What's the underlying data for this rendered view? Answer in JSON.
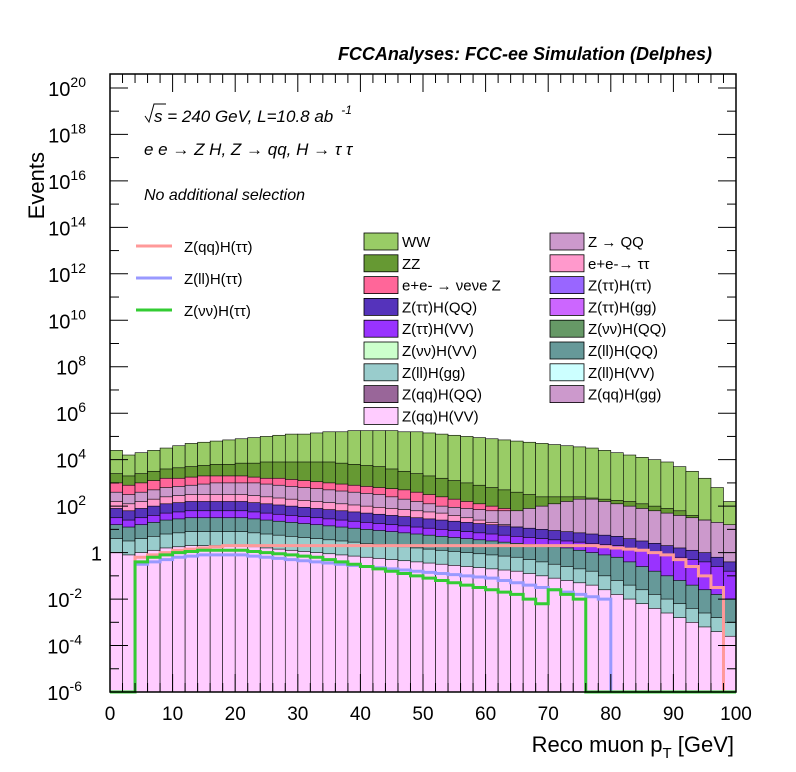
{
  "chart_data": {
    "type": "area",
    "title": "FCCAnalyses: FCC-ee Simulation (Delphes)",
    "xlabel": "Reco muon p",
    "xlabel_sub": "T",
    "xlabel_unit": " [GeV]",
    "ylabel": "Events",
    "xlim": [
      0,
      100
    ],
    "ylim_log10": [
      -6,
      20.6
    ],
    "log_y": true,
    "x_ticks": [
      "0",
      "10",
      "20",
      "30",
      "40",
      "50",
      "60",
      "70",
      "80",
      "90",
      "100"
    ],
    "y_tick_exponents": [
      "20",
      "18",
      "16",
      "14",
      "12",
      "10",
      "8",
      "6",
      "4",
      "2",
      "",
      "-2",
      "-4",
      "-6"
    ],
    "y_tick_one": "1",
    "annotations": {
      "energy": "s = 240 GeV, L=10.8 ab",
      "lumi_exp": "-1",
      "process": "e e → Z H, Z → qq, H → τ τ",
      "selection": "No additional selection"
    },
    "bin_edges": [
      0,
      2,
      4,
      6,
      8,
      10,
      12,
      14,
      16,
      18,
      20,
      22,
      24,
      26,
      28,
      30,
      32,
      34,
      36,
      38,
      40,
      42,
      44,
      46,
      48,
      50,
      52,
      54,
      56,
      58,
      60,
      62,
      64,
      66,
      68,
      70,
      72,
      74,
      76,
      78,
      80,
      82,
      84,
      86,
      88,
      90,
      92,
      94,
      96,
      98,
      100
    ],
    "stack": [
      {
        "name": "WW",
        "color": "#99cc66",
        "log10_top": [
          4.4,
          4.2,
          4.3,
          4.4,
          4.5,
          4.6,
          4.7,
          4.75,
          4.8,
          4.85,
          4.9,
          4.95,
          5.0,
          5.05,
          5.1,
          5.1,
          5.15,
          5.2,
          5.2,
          5.25,
          5.25,
          5.25,
          5.25,
          5.2,
          5.2,
          5.15,
          5.1,
          5.05,
          5.0,
          4.95,
          4.9,
          4.85,
          4.8,
          4.75,
          4.7,
          4.65,
          4.6,
          4.55,
          4.5,
          4.4,
          4.3,
          4.2,
          4.1,
          4.0,
          3.9,
          3.7,
          3.5,
          3.2,
          2.8,
          2.2
        ]
      },
      {
        "name": "ZZ",
        "color": "#669933",
        "log10_top": [
          3.4,
          3.3,
          3.4,
          3.5,
          3.6,
          3.65,
          3.7,
          3.75,
          3.8,
          3.8,
          3.85,
          3.85,
          3.9,
          3.9,
          3.9,
          3.9,
          3.9,
          3.9,
          3.85,
          3.8,
          3.75,
          3.7,
          3.6,
          3.5,
          3.4,
          3.3,
          3.2,
          3.1,
          3.0,
          2.9,
          2.8,
          2.7,
          2.6,
          2.5,
          2.4,
          2.4,
          2.4,
          2.4,
          2.35,
          2.3,
          2.25,
          2.2,
          2.1,
          2.0,
          1.9,
          1.8,
          1.6,
          1.4,
          1.1,
          0.8
        ]
      },
      {
        "name": "e+e- → νeνe Z",
        "color": "#ff6699",
        "log10_top": [
          3.0,
          2.9,
          3.0,
          3.1,
          3.2,
          3.2,
          3.25,
          3.3,
          3.3,
          3.3,
          3.3,
          3.25,
          3.2,
          3.2,
          3.15,
          3.1,
          3.05,
          3.0,
          2.95,
          2.9,
          2.85,
          2.8,
          2.75,
          2.7,
          2.6,
          2.5,
          2.4,
          2.3,
          2.2,
          2.1,
          2.0,
          1.9,
          1.8,
          1.7,
          1.6,
          1.5,
          1.4,
          1.3,
          1.2,
          1.1,
          1.0,
          0.9,
          0.8,
          0.7,
          0.6,
          0.5,
          0.4,
          0.3,
          0.2,
          0.1
        ]
      },
      {
        "name": "Z → QQ",
        "color": "#cc99cc",
        "log10_top": [
          2.6,
          2.5,
          2.6,
          2.7,
          2.8,
          2.85,
          2.9,
          2.95,
          3.0,
          3.0,
          3.0,
          3.0,
          2.95,
          2.9,
          2.85,
          2.8,
          2.75,
          2.7,
          2.65,
          2.6,
          2.55,
          2.5,
          2.4,
          2.3,
          2.2,
          2.1,
          2.0,
          1.95,
          1.9,
          1.85,
          1.8,
          1.8,
          1.8,
          1.9,
          2.0,
          2.1,
          2.2,
          2.3,
          2.3,
          2.2,
          2.1,
          2.0,
          1.9,
          1.8,
          1.7,
          1.6,
          1.5,
          1.4,
          1.3,
          1.2
        ]
      },
      {
        "name": "e+e-→ ττ",
        "color": "#ff99cc",
        "log10_top": [
          2.2,
          2.1,
          2.2,
          2.3,
          2.4,
          2.45,
          2.5,
          2.5,
          2.5,
          2.5,
          2.5,
          2.45,
          2.4,
          2.35,
          2.3,
          2.25,
          2.2,
          2.15,
          2.1,
          2.05,
          2.0,
          1.95,
          1.9,
          1.85,
          1.8,
          1.75,
          1.7,
          1.6,
          1.5,
          1.4,
          1.3,
          1.2,
          1.1,
          1.0,
          0.9,
          0.8,
          0.7,
          0.6,
          0.5,
          0.4,
          0.3,
          0.2,
          0.1,
          0.0,
          -0.2,
          -0.4,
          -0.6,
          -0.8,
          -1.0,
          -1.2
        ]
      },
      {
        "name": "Z(ττ)H(QQ)",
        "color": "#5533bb",
        "log10_top": [
          1.9,
          1.8,
          1.9,
          2.0,
          2.1,
          2.15,
          2.2,
          2.2,
          2.2,
          2.2,
          2.2,
          2.15,
          2.1,
          2.05,
          2.0,
          1.95,
          1.9,
          1.85,
          1.8,
          1.75,
          1.7,
          1.65,
          1.6,
          1.55,
          1.5,
          1.45,
          1.4,
          1.35,
          1.3,
          1.25,
          1.2,
          1.15,
          1.1,
          1.05,
          1.0,
          0.95,
          0.9,
          0.85,
          0.8,
          0.75,
          0.7,
          0.6,
          0.5,
          0.4,
          0.3,
          0.2,
          0.1,
          0.0,
          -0.2,
          -0.4
        ]
      },
      {
        "name": "Z(ττ)H(VV)",
        "color": "#9933ff",
        "log10_top": [
          1.5,
          1.4,
          1.5,
          1.6,
          1.7,
          1.75,
          1.8,
          1.8,
          1.8,
          1.8,
          1.8,
          1.75,
          1.7,
          1.65,
          1.6,
          1.55,
          1.5,
          1.45,
          1.4,
          1.35,
          1.3,
          1.25,
          1.2,
          1.15,
          1.1,
          1.05,
          1.0,
          0.95,
          0.9,
          0.85,
          0.8,
          0.75,
          0.7,
          0.65,
          0.6,
          0.55,
          0.5,
          0.45,
          0.4,
          0.35,
          0.3,
          0.2,
          0.1,
          0.0,
          -0.1,
          -0.2,
          -0.3,
          -0.4,
          -0.6,
          -0.8
        ]
      },
      {
        "name": "Z(ll)H(QQ)",
        "color": "#669999",
        "log10_top": [
          1.2,
          1.1,
          1.2,
          1.3,
          1.4,
          1.45,
          1.5,
          1.5,
          1.5,
          1.5,
          1.5,
          1.45,
          1.4,
          1.35,
          1.3,
          1.25,
          1.2,
          1.15,
          1.1,
          1.05,
          1.0,
          0.95,
          0.9,
          0.85,
          0.8,
          0.75,
          0.7,
          0.65,
          0.6,
          0.55,
          0.5,
          0.45,
          0.4,
          0.35,
          0.3,
          0.25,
          0.2,
          0.1,
          0.0,
          -0.1,
          -0.2,
          -0.4,
          -0.6,
          -0.8,
          -1.0,
          -1.2,
          -1.4,
          -1.6,
          -1.8,
          -2.0
        ]
      },
      {
        "name": "Z(ll)H(gg)",
        "color": "#99cccc",
        "log10_top": [
          0.6,
          0.5,
          0.6,
          0.7,
          0.8,
          0.85,
          0.9,
          0.9,
          0.9,
          0.9,
          0.9,
          0.85,
          0.8,
          0.75,
          0.7,
          0.65,
          0.6,
          0.55,
          0.5,
          0.45,
          0.4,
          0.35,
          0.3,
          0.25,
          0.2,
          0.15,
          0.1,
          0.05,
          0.0,
          -0.05,
          -0.1,
          -0.15,
          -0.2,
          -0.3,
          -0.4,
          -0.5,
          -0.6,
          -0.7,
          -0.8,
          -1.0,
          -1.2,
          -1.4,
          -1.6,
          -1.8,
          -2.0,
          -2.2,
          -2.4,
          -2.6,
          -2.8,
          -3.0
        ]
      },
      {
        "name": "Z(qq)H(VV)",
        "color": "#ffccff",
        "log10_top": [
          0.0,
          -0.1,
          0.0,
          0.1,
          0.2,
          0.25,
          0.3,
          0.3,
          0.3,
          0.3,
          0.3,
          0.25,
          0.2,
          0.15,
          0.1,
          0.05,
          0.0,
          -0.05,
          -0.1,
          -0.15,
          -0.2,
          -0.25,
          -0.3,
          -0.35,
          -0.4,
          -0.45,
          -0.5,
          -0.55,
          -0.6,
          -0.65,
          -0.7,
          -0.75,
          -0.8,
          -0.9,
          -1.0,
          -1.1,
          -1.2,
          -1.3,
          -1.4,
          -1.6,
          -1.8,
          -2.0,
          -2.2,
          -2.4,
          -2.6,
          -2.8,
          -3.0,
          -3.2,
          -3.4,
          -3.6
        ]
      }
    ],
    "legend_extra_fill": [
      {
        "name": "Z(νν)H(VV)",
        "color": "#ccffcc"
      },
      {
        "name": "Z(qq)H(QQ)",
        "color": "#996699"
      },
      {
        "name": "Z(ττ)H(ττ)",
        "color": "#9966ff"
      },
      {
        "name": "Z(ττ)H(gg)",
        "color": "#cc66ff"
      },
      {
        "name": "Z(νν)H(QQ)",
        "color": "#669966"
      },
      {
        "name": "Z(ll)H(VV)",
        "color": "#ccffff"
      },
      {
        "name": "Z(qq)H(gg)",
        "color": "#cc99cc"
      }
    ],
    "signal_lines": [
      {
        "name": "Z(qq)H(ττ)",
        "color": "#ff9999",
        "log10": [
          -6,
          -6,
          -0.2,
          -0.1,
          0.0,
          0.1,
          0.15,
          0.2,
          0.25,
          0.3,
          0.3,
          0.3,
          0.3,
          0.3,
          0.3,
          0.3,
          0.3,
          0.3,
          0.3,
          0.3,
          0.3,
          0.3,
          0.3,
          0.3,
          0.3,
          0.3,
          0.3,
          0.3,
          0.3,
          0.3,
          0.3,
          0.3,
          0.3,
          0.3,
          0.3,
          0.3,
          0.3,
          0.3,
          0.3,
          0.25,
          0.2,
          0.15,
          0.1,
          0.0,
          -0.1,
          -0.3,
          -0.6,
          -1.0,
          -1.5,
          -6
        ]
      },
      {
        "name": "Z(ll)H(ττ)",
        "color": "#9999ff",
        "log10": [
          -6,
          -6,
          -0.5,
          -0.4,
          -0.3,
          -0.2,
          -0.15,
          -0.1,
          -0.1,
          -0.1,
          -0.1,
          -0.15,
          -0.2,
          -0.25,
          -0.3,
          -0.35,
          -0.4,
          -0.45,
          -0.5,
          -0.55,
          -0.6,
          -0.65,
          -0.7,
          -0.75,
          -0.8,
          -0.85,
          -0.9,
          -0.95,
          -1.0,
          -1.05,
          -1.1,
          -1.2,
          -1.3,
          -1.4,
          -1.5,
          -1.6,
          -1.7,
          -1.8,
          -1.9,
          -2.0,
          -6,
          -6,
          -6,
          -6,
          -6,
          -6,
          -6,
          -6,
          -6,
          -6
        ]
      },
      {
        "name": "Z(νν)H(ττ)",
        "color": "#33cc33",
        "log10": [
          -6,
          -6,
          -0.4,
          -0.2,
          -0.1,
          0.0,
          0.05,
          0.1,
          0.1,
          0.1,
          0.1,
          0.05,
          0.0,
          -0.05,
          -0.1,
          -0.15,
          -0.2,
          -0.3,
          -0.4,
          -0.5,
          -0.6,
          -0.7,
          -0.8,
          -0.9,
          -1.0,
          -1.1,
          -1.2,
          -1.3,
          -1.4,
          -1.5,
          -1.6,
          -1.7,
          -1.8,
          -2.0,
          -2.2,
          -1.6,
          -1.8,
          -2.0,
          -6,
          -6,
          -6,
          -6,
          -6,
          -6,
          -6,
          -6,
          -6,
          -6,
          -6,
          -6
        ]
      }
    ]
  }
}
